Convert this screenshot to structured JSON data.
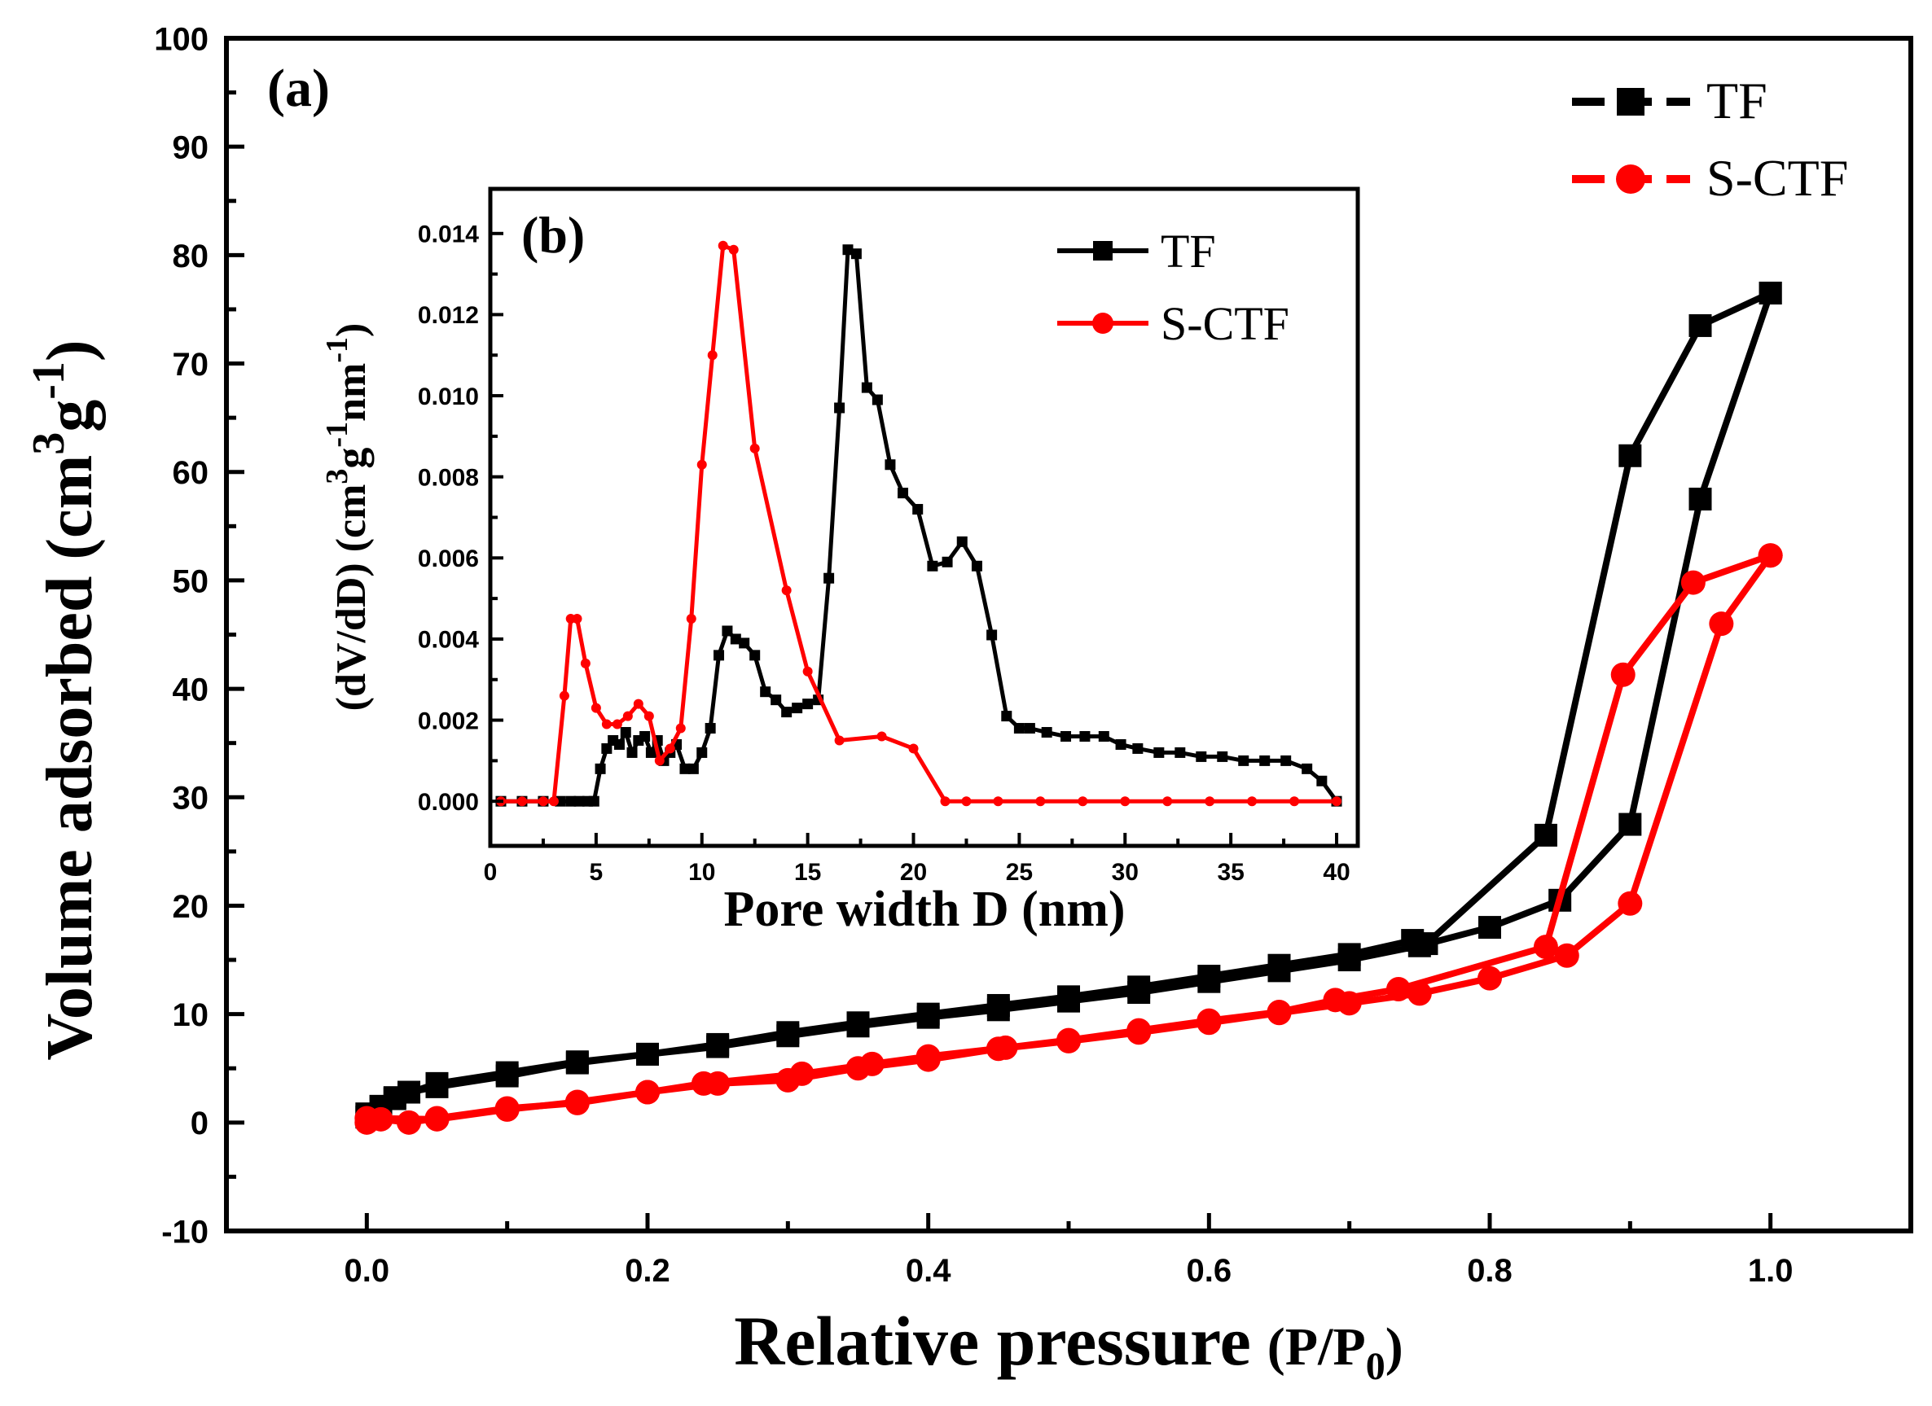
{
  "chart_data": [
    {
      "id": "main",
      "type": "line",
      "panel_label": "(a)",
      "xlabel": "Relative pressure",
      "xlabel_unit": {
        "open": "(",
        "base": "P/P",
        "sub": "0",
        "close": ")"
      },
      "ylabel": {
        "main": "Volume adsorbed (cm",
        "sup1": "3",
        "mid": "g",
        "sup2": "-1",
        "close": ")"
      },
      "xlim": [
        -0.1,
        1.1
      ],
      "ylim": [
        -10,
        100
      ],
      "x_ticks": [
        0.0,
        0.2,
        0.4,
        0.6,
        0.8,
        1.0
      ],
      "x_tick_labels": [
        "0.0",
        "0.2",
        "0.4",
        "0.6",
        "0.8",
        "1.0"
      ],
      "y_ticks": [
        -10,
        0,
        10,
        20,
        30,
        40,
        50,
        60,
        70,
        80,
        90,
        100
      ],
      "y_tick_labels": [
        "-10",
        "0",
        "10",
        "20",
        "30",
        "40",
        "50",
        "60",
        "70",
        "80",
        "90",
        "100"
      ],
      "legend": "top-right",
      "series": [
        {
          "name": "TF",
          "color": "#000000",
          "marker": "square",
          "line": "dash",
          "adsorption": {
            "x": [
              0.0,
              0.01,
              0.02,
              0.03,
              0.05,
              0.1,
              0.15,
              0.2,
              0.25,
              0.3,
              0.35,
              0.4,
              0.45,
              0.5,
              0.55,
              0.6,
              0.65,
              0.7,
              0.75,
              0.8,
              0.85,
              0.9,
              0.95,
              1.0
            ],
            "y": [
              0.5,
              1.5,
              2.2,
              2.8,
              3.3,
              4.3,
              5.5,
              6.3,
              7.0,
              8.0,
              8.9,
              9.7,
              10.4,
              11.2,
              12.0,
              13.0,
              14.0,
              15.0,
              16.3,
              18.0,
              20.5,
              27.5,
              57.5,
              76.5
            ]
          },
          "desorption": {
            "x": [
              1.0,
              0.95,
              0.9,
              0.84,
              0.755,
              0.745,
              0.7,
              0.65,
              0.6,
              0.55,
              0.5,
              0.45,
              0.4,
              0.35,
              0.3,
              0.25,
              0.2,
              0.15,
              0.1,
              0.05,
              0.02,
              0.0
            ],
            "y": [
              76.5,
              73.5,
              61.5,
              26.5,
              16.5,
              16.8,
              15.5,
              14.5,
              13.5,
              12.5,
              11.6,
              10.8,
              10.0,
              9.2,
              8.3,
              7.2,
              6.3,
              5.6,
              4.6,
              3.6,
              2.3,
              0.8
            ]
          }
        },
        {
          "name": "S-CTF",
          "color": "#ff0000",
          "marker": "circle",
          "line": "dash",
          "adsorption": {
            "x": [
              0.0,
              0.01,
              0.03,
              0.05,
              0.1,
              0.15,
              0.2,
              0.25,
              0.3,
              0.35,
              0.4,
              0.45,
              0.5,
              0.55,
              0.6,
              0.65,
              0.7,
              0.75,
              0.8,
              0.855,
              0.9,
              0.965,
              1.0
            ],
            "y": [
              0.0,
              0.3,
              0.0,
              0.4,
              1.3,
              1.8,
              2.8,
              3.6,
              3.9,
              5.0,
              5.8,
              6.8,
              7.5,
              8.3,
              9.2,
              10.1,
              11.0,
              11.9,
              13.3,
              15.4,
              20.2,
              46.0,
              52.3
            ]
          },
          "desorption": {
            "x": [
              1.0,
              0.945,
              0.895,
              0.84,
              0.735,
              0.69,
              0.65,
              0.6,
              0.55,
              0.5,
              0.455,
              0.4,
              0.36,
              0.31,
              0.24,
              0.2,
              0.15,
              0.1,
              0.05,
              0.0
            ],
            "y": [
              52.3,
              49.8,
              41.3,
              16.2,
              12.3,
              11.3,
              10.2,
              9.4,
              8.5,
              7.6,
              6.9,
              6.1,
              5.4,
              4.5,
              3.6,
              2.8,
              1.9,
              1.2,
              0.3,
              0.4
            ]
          }
        }
      ]
    },
    {
      "id": "inset",
      "type": "line",
      "panel_label": "(b)",
      "xlabel": "Pore width D (nm)",
      "ylabel": {
        "main": "(dV/dD) (cm",
        "sup1": "3",
        "mid": "g",
        "sup2": "-1",
        "mid2": "nm",
        "sup3": "-1",
        "close": ")"
      },
      "xlim": [
        0,
        41
      ],
      "ylim": [
        -0.0011,
        0.0151
      ],
      "x_ticks": [
        0,
        5,
        10,
        15,
        20,
        25,
        30,
        35,
        40
      ],
      "x_tick_labels": [
        "0",
        "5",
        "10",
        "15",
        "20",
        "25",
        "30",
        "35",
        "40"
      ],
      "y_ticks": [
        0,
        0.002,
        0.004,
        0.006,
        0.008,
        0.01,
        0.012,
        0.014
      ],
      "y_tick_labels": [
        "0.000",
        "0.002",
        "0.004",
        "0.006",
        "0.008",
        "0.010",
        "0.012",
        "0.014"
      ],
      "legend": "top-right",
      "series": [
        {
          "name": "TF",
          "color": "#000000",
          "marker": "square",
          "line": "solid",
          "x": [
            0.5,
            1.5,
            2.5,
            3.3,
            3.8,
            4.2,
            4.6,
            4.9,
            5.2,
            5.5,
            5.8,
            6.1,
            6.4,
            6.7,
            7.0,
            7.3,
            7.6,
            7.9,
            8.2,
            8.5,
            8.8,
            9.2,
            9.6,
            10.0,
            10.4,
            10.8,
            11.2,
            11.6,
            12.0,
            12.5,
            13.0,
            13.5,
            14.0,
            14.5,
            15.0,
            15.5,
            16.0,
            16.5,
            16.9,
            17.3,
            17.8,
            18.3,
            18.9,
            19.5,
            20.2,
            20.9,
            21.6,
            22.3,
            23.0,
            23.7,
            24.4,
            25.0,
            25.5,
            26.3,
            27.2,
            28.1,
            29.0,
            29.8,
            30.6,
            31.6,
            32.6,
            33.6,
            34.6,
            35.6,
            36.6,
            37.6,
            38.6,
            39.3,
            40.0
          ],
          "y": [
            0.0,
            0.0,
            0.0,
            0.0,
            0.0,
            0.0,
            0.0,
            0.0,
            0.0008,
            0.0013,
            0.0015,
            0.0014,
            0.0017,
            0.0012,
            0.0015,
            0.0016,
            0.0012,
            0.0015,
            0.001,
            0.0012,
            0.0014,
            0.0008,
            0.0008,
            0.0012,
            0.0018,
            0.0036,
            0.0042,
            0.004,
            0.0039,
            0.0036,
            0.0027,
            0.0025,
            0.0022,
            0.0023,
            0.0024,
            0.0025,
            0.0055,
            0.0097,
            0.0136,
            0.0135,
            0.0102,
            0.0099,
            0.0083,
            0.0076,
            0.0072,
            0.0058,
            0.0059,
            0.0064,
            0.0058,
            0.0041,
            0.0021,
            0.0018,
            0.0018,
            0.0017,
            0.0016,
            0.0016,
            0.0016,
            0.0014,
            0.0013,
            0.0012,
            0.0012,
            0.0011,
            0.0011,
            0.001,
            0.001,
            0.001,
            0.0008,
            0.0005,
            0.0
          ]
        },
        {
          "name": "S-CTF",
          "color": "#ff0000",
          "marker": "circle",
          "line": "solid",
          "x": [
            0.5,
            1.5,
            2.5,
            3.0,
            3.5,
            3.8,
            4.1,
            4.5,
            5.0,
            5.5,
            6.0,
            6.5,
            7.0,
            7.5,
            8.0,
            8.5,
            9.0,
            9.5,
            10.0,
            10.5,
            11.0,
            11.5,
            12.5,
            14.0,
            15.0,
            16.5,
            18.5,
            20.0,
            21.5,
            22.5,
            24.0,
            26.0,
            28.0,
            30.0,
            32.0,
            34.0,
            36.0,
            38.0,
            40.0
          ],
          "y": [
            0.0,
            0.0,
            0.0,
            0.0,
            0.0026,
            0.0045,
            0.0045,
            0.0034,
            0.0023,
            0.0019,
            0.0019,
            0.0021,
            0.0024,
            0.0021,
            0.001,
            0.0013,
            0.0018,
            0.0045,
            0.0083,
            0.011,
            0.0137,
            0.0136,
            0.0087,
            0.0052,
            0.0032,
            0.0015,
            0.0016,
            0.0013,
            0.0,
            0.0,
            0.0,
            0.0,
            0.0,
            0.0,
            0.0,
            0.0,
            0.0,
            0.0,
            0.0
          ]
        }
      ]
    }
  ]
}
